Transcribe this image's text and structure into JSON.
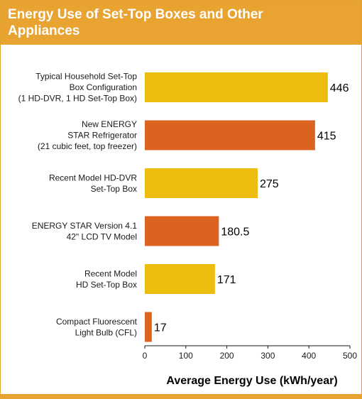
{
  "title": "Energy Use of Set-Top Boxes and Other Appliances",
  "colors": {
    "header": "#e8a331",
    "bar_yellow": "#ecbd0e",
    "bar_orange": "#dc6220"
  },
  "chart_data": {
    "type": "bar",
    "orientation": "horizontal",
    "categories": [
      [
        "Typical Household Set-Top",
        "Box Configuration",
        "(1 HD-DVR, 1 HD Set-Top Box)"
      ],
      [
        "New ENERGY",
        "STAR Refrigerator",
        "(21 cubic feet, top freezer)"
      ],
      [
        "Recent Model HD-DVR",
        "Set-Top Box"
      ],
      [
        "ENERGY STAR Version 4.1",
        "42\" LCD TV Model"
      ],
      [
        "Recent Model",
        "HD Set-Top Box"
      ],
      [
        "Compact Fluorescent",
        "Light Bulb (CFL)"
      ]
    ],
    "values": [
      446,
      415,
      275,
      180.5,
      171,
      17
    ],
    "value_labels": [
      "446",
      "415",
      "275",
      "180.5",
      "171",
      "17"
    ],
    "bar_colors": [
      "#ecbd0e",
      "#dc6220",
      "#ecbd0e",
      "#dc6220",
      "#ecbd0e",
      "#dc6220"
    ],
    "xlabel": "Average Energy Use (kWh/year)",
    "ylabel": "",
    "xlim": [
      0,
      500
    ],
    "xticks": [
      "0",
      "100",
      "200",
      "300",
      "400",
      "500"
    ],
    "grid": false
  }
}
